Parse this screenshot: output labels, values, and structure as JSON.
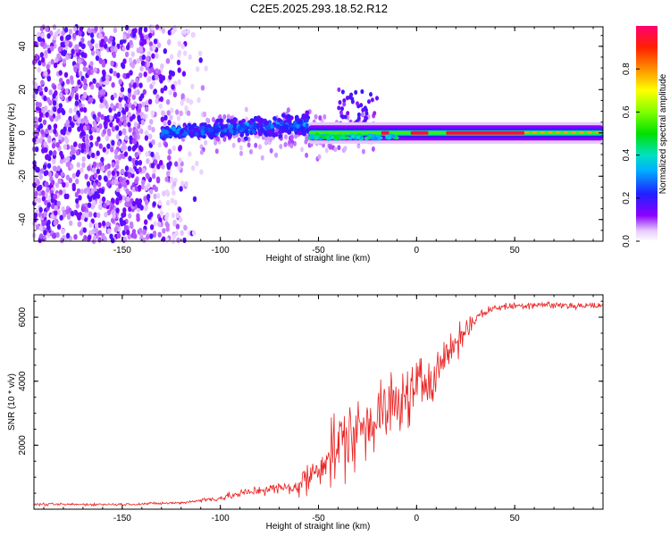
{
  "title": "C2E5.2025.293.18.52.R12",
  "chart_data": [
    {
      "type": "heatmap",
      "name": "spectrogram",
      "xlabel": "Height of straight line (km)",
      "ylabel": "Frequency (Hz)",
      "xlim": [
        -195,
        95
      ],
      "ylim": [
        -50,
        49
      ],
      "x_ticks": [
        -150,
        -100,
        -50,
        0,
        50
      ],
      "x_tick_labels": [
        "-150",
        "-100",
        "-50",
        "0",
        "50"
      ],
      "y_ticks": [
        -40,
        -20,
        0,
        20,
        40
      ],
      "y_tick_labels": [
        "-40",
        "-20",
        "0",
        "20",
        "40"
      ],
      "colorbar": {
        "label": "Normalized spectral amplitude",
        "range": [
          0.0,
          1.0
        ],
        "ticks": [
          0.0,
          0.2,
          0.4,
          0.6,
          0.8
        ],
        "tick_labels": [
          "0.0",
          "0.2",
          "0.4",
          "0.6",
          "0.8"
        ]
      },
      "features": [
        {
          "name": "noise-field",
          "x_range": [
            -195,
            -105
          ],
          "freq_range": [
            -50,
            49
          ],
          "amplitude": 0.05
        },
        {
          "name": "signal-band-early",
          "x_range": [
            -130,
            -55
          ],
          "freq_center_start": 0,
          "freq_center_end": 4,
          "amplitude": 0.3
        },
        {
          "name": "signal-band-late",
          "x_range": [
            -55,
            95
          ],
          "freq_center": 0,
          "amplitude": 0.55
        },
        {
          "name": "peak-segment",
          "x_range": [
            15,
            55
          ],
          "freq_center": 0,
          "amplitude": 0.95
        }
      ]
    },
    {
      "type": "line",
      "name": "snr",
      "xlabel": "Height of straight line (km)",
      "ylabel": "SNR (10 * v/v)",
      "xlim": [
        -195,
        95
      ],
      "ylim": [
        0,
        6700
      ],
      "x_ticks": [
        -150,
        -100,
        -50,
        0,
        50
      ],
      "x_tick_labels": [
        "-150",
        "-100",
        "-50",
        "0",
        "50"
      ],
      "y_ticks": [
        2000,
        4000,
        6000
      ],
      "y_tick_labels": [
        "2000",
        "4000",
        "6000"
      ],
      "color": "#e82020",
      "trend": {
        "x": [
          -195,
          -150,
          -120,
          -100,
          -80,
          -60,
          -50,
          -40,
          -30,
          -20,
          -10,
          0,
          10,
          20,
          30,
          40,
          50,
          60,
          70,
          80,
          95
        ],
        "y": [
          150,
          150,
          200,
          350,
          600,
          700,
          1300,
          2000,
          2500,
          2900,
          3300,
          3700,
          4400,
          5200,
          6000,
          6300,
          6350,
          6400,
          6380,
          6360,
          6350
        ]
      }
    }
  ]
}
